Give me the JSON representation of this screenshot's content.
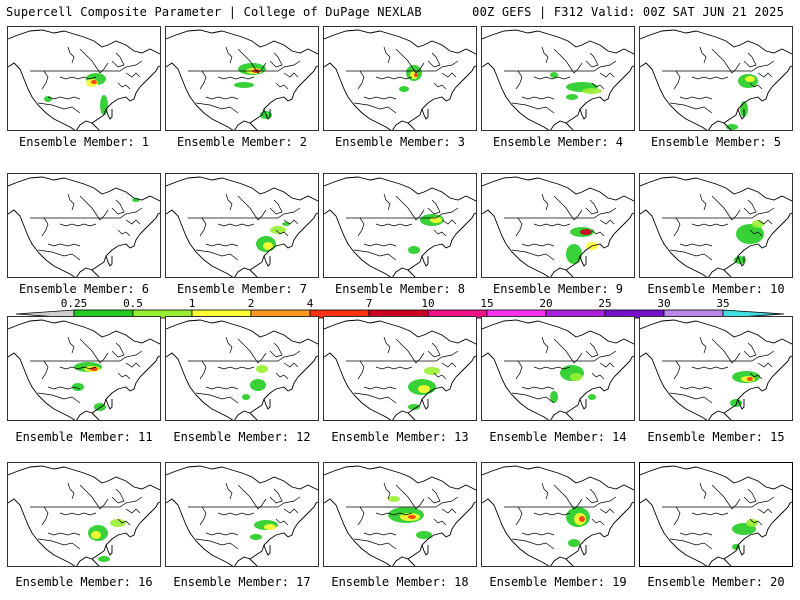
{
  "header": {
    "left": "Supercell Composite Parameter | College of DuPage NEXLAB",
    "right": "00Z GEFS | F312 Valid: 00Z SAT JUN 21 2025"
  },
  "colorbar": {
    "labels": [
      "0.25",
      "0.5",
      "1",
      "2",
      "4",
      "7",
      "10",
      "15",
      "20",
      "25",
      "30",
      "35"
    ],
    "colors": [
      "#cfcfcf",
      "#22cc22",
      "#99ee33",
      "#ffff33",
      "#ff9922",
      "#ff3311",
      "#cc0022",
      "#ee1188",
      "#ff33ee",
      "#aa22dd",
      "#7711cc",
      "#bb88ee",
      "#44dddd"
    ]
  },
  "members": [
    {
      "label": "Ensemble Member: 1"
    },
    {
      "label": "Ensemble Member: 2"
    },
    {
      "label": "Ensemble Member: 3"
    },
    {
      "label": "Ensemble Member: 4"
    },
    {
      "label": "Ensemble Member: 5"
    },
    {
      "label": "Ensemble Member: 6"
    },
    {
      "label": "Ensemble Member: 7"
    },
    {
      "label": "Ensemble Member: 8"
    },
    {
      "label": "Ensemble Member: 9"
    },
    {
      "label": "Ensemble Member: 10"
    },
    {
      "label": "Ensemble Member: 11"
    },
    {
      "label": "Ensemble Member: 12"
    },
    {
      "label": "Ensemble Member: 13"
    },
    {
      "label": "Ensemble Member: 14"
    },
    {
      "label": "Ensemble Member: 15"
    },
    {
      "label": "Ensemble Member: 16"
    },
    {
      "label": "Ensemble Member: 17"
    },
    {
      "label": "Ensemble Member: 18"
    },
    {
      "label": "Ensemble Member: 19"
    },
    {
      "label": "Ensemble Member: 20"
    }
  ]
}
